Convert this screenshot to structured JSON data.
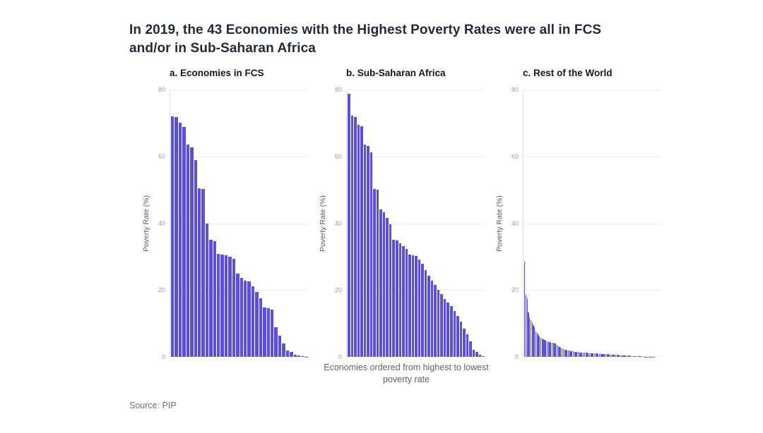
{
  "page": {
    "title_lines": [
      "In 2019, the 43 Economies with the Highest Poverty Rates were all in FCS",
      "and/or in Sub-Saharan Africa"
    ],
    "source": "Source: PIP"
  },
  "colors": {
    "bar": "#5b4fe0",
    "title_text": "#222b3a",
    "panel_title_text": "#16181d",
    "tick_text": "#9a9a9a",
    "gridline": "#ededed"
  },
  "chart_data": {
    "type": "bar",
    "title": "In 2019, the 43 Economies with the Highest Poverty Rates were all in FCS and/or in Sub-Saharan Africa",
    "ylabel": "Poverty Rate (%)",
    "xlabel_line1": "Economies ordered from highest to lowest",
    "xlabel_line2": "poverty rate",
    "ylim": [
      0,
      80
    ],
    "yticks": [
      0,
      20,
      40,
      60,
      80
    ],
    "grid": "horizontal",
    "bar_color": "#5b4fe0",
    "legend": null,
    "panels": [
      {
        "label": "a. Economies in FCS",
        "values": [
          72,
          71.8,
          70,
          68.8,
          63.5,
          62.8,
          58.8,
          50.5,
          50.2,
          39.8,
          35,
          34.6,
          30.8,
          30.6,
          30.4,
          30,
          29.4,
          25,
          23.6,
          22.9,
          22.6,
          21.2,
          19.4,
          17.6,
          14.8,
          14.5,
          14.2,
          8.8,
          6.3,
          4.1,
          1.8,
          1.4,
          0.7,
          0.4,
          0.2,
          0.1
        ]
      },
      {
        "label": "b. Sub-Saharan Africa",
        "values": [
          78.8,
          72.1,
          71.8,
          69.5,
          69.1,
          63.6,
          63.1,
          61.2,
          50.3,
          50,
          44.1,
          43.2,
          41.6,
          39.6,
          35,
          34.8,
          33.9,
          33.1,
          32.4,
          30.7,
          30.4,
          30.2,
          29.1,
          27.9,
          25.9,
          24.3,
          22.7,
          21.5,
          20.1,
          18.7,
          17.3,
          16.2,
          15.2,
          13.8,
          12.3,
          10.6,
          8.5,
          6.7,
          4.6,
          2.1,
          1.4,
          0.6,
          0.3
        ]
      },
      {
        "label": "c. Rest of the World",
        "values": [
          28.4,
          18.6,
          17.6,
          13.2,
          11.6,
          11,
          10.4,
          9.6,
          8.8,
          7.6,
          7.2,
          6.6,
          6.2,
          5.8,
          5.5,
          5.2,
          5,
          4.8,
          4.6,
          4.5,
          4.4,
          4.3,
          4.2,
          4.2,
          4.1,
          4,
          3.6,
          3.2,
          2.9,
          2.7,
          2.5,
          2.3,
          2.2,
          2.1,
          2,
          1.9,
          1.8,
          1.7,
          1.65,
          1.6,
          1.55,
          1.5,
          1.45,
          1.4,
          1.35,
          1.3,
          1.28,
          1.25,
          1.22,
          1.2,
          1.18,
          1.15,
          1.12,
          1.1,
          1.08,
          1.05,
          1.02,
          1,
          0.98,
          0.95,
          0.92,
          0.9,
          0.88,
          0.85,
          0.82,
          0.8,
          0.78,
          0.75,
          0.72,
          0.7,
          0.68,
          0.65,
          0.62,
          0.6,
          0.58,
          0.55,
          0.52,
          0.5,
          0.48,
          0.45,
          0.42,
          0.4,
          0.38,
          0.35,
          0.32,
          0.3,
          0.28,
          0.26,
          0.24,
          0.22,
          0.2,
          0.18,
          0.16,
          0.14,
          0.12,
          0.1,
          0.09,
          0.08,
          0.07,
          0.06,
          0.05,
          0.04,
          0.03,
          0.02,
          0.02,
          0.01,
          0.01,
          0.01,
          0,
          0
        ]
      }
    ]
  }
}
